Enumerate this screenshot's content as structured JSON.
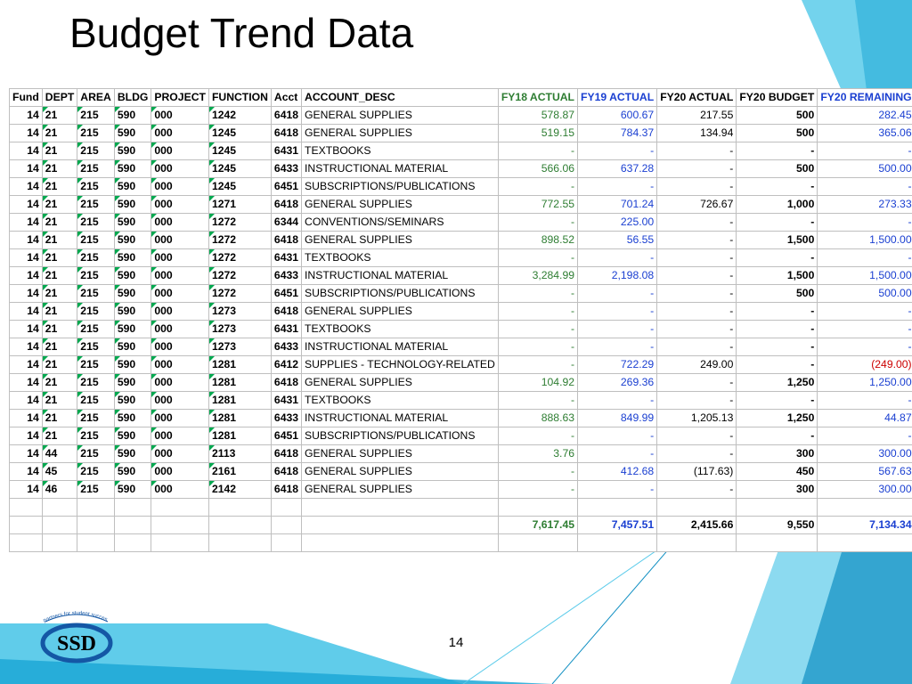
{
  "title": "Budget Trend Data",
  "page_number": "14",
  "logo": {
    "text": "SSD",
    "ribbon": "partners for student success"
  },
  "colors": {
    "fy18": "#2e7d32",
    "fy19": "#1a3fd1",
    "fy20a": "#000000",
    "fy20b": "#000000",
    "fy20r": "#1a3fd1",
    "negative": "#cc0000",
    "grid": "#bfbfbf",
    "flag": "#00a84f",
    "totals_fy18": "#2e7d32",
    "totals_fy19": "#1a3fd1",
    "totals_fy20r": "#1a3fd1"
  },
  "table": {
    "columns": [
      {
        "key": "fund",
        "label": "Fund"
      },
      {
        "key": "dept",
        "label": "DEPT"
      },
      {
        "key": "area",
        "label": "AREA"
      },
      {
        "key": "bldg",
        "label": "BLDG"
      },
      {
        "key": "project",
        "label": "PROJECT"
      },
      {
        "key": "function",
        "label": "FUNCTION"
      },
      {
        "key": "acct",
        "label": "Acct"
      },
      {
        "key": "desc",
        "label": "ACCOUNT_DESC"
      },
      {
        "key": "fy18",
        "label": "FY18 ACTUAL"
      },
      {
        "key": "fy19",
        "label": "FY19 ACTUAL"
      },
      {
        "key": "fy20a",
        "label": "FY20 ACTUAL"
      },
      {
        "key": "fy20b",
        "label": "FY20 BUDGET"
      },
      {
        "key": "fy20r",
        "label": "FY20 REMAINING"
      }
    ],
    "rows": [
      {
        "fund": "14",
        "dept": "21",
        "area": "215",
        "bldg": "590",
        "project": "000",
        "function": "1242",
        "acct": "6418",
        "desc": "GENERAL SUPPLIES",
        "fy18": "578.87",
        "fy19": "600.67",
        "fy20a": "217.55",
        "fy20b": "500",
        "fy20r": "282.45"
      },
      {
        "fund": "14",
        "dept": "21",
        "area": "215",
        "bldg": "590",
        "project": "000",
        "function": "1245",
        "acct": "6418",
        "desc": "GENERAL SUPPLIES",
        "fy18": "519.15",
        "fy19": "784.37",
        "fy20a": "134.94",
        "fy20b": "500",
        "fy20r": "365.06"
      },
      {
        "fund": "14",
        "dept": "21",
        "area": "215",
        "bldg": "590",
        "project": "000",
        "function": "1245",
        "acct": "6431",
        "desc": "TEXTBOOKS",
        "fy18": "-",
        "fy19": "-",
        "fy20a": "-",
        "fy20b": "-",
        "fy20r": "-"
      },
      {
        "fund": "14",
        "dept": "21",
        "area": "215",
        "bldg": "590",
        "project": "000",
        "function": "1245",
        "acct": "6433",
        "desc": "INSTRUCTIONAL MATERIAL",
        "fy18": "566.06",
        "fy19": "637.28",
        "fy20a": "-",
        "fy20b": "500",
        "fy20r": "500.00"
      },
      {
        "fund": "14",
        "dept": "21",
        "area": "215",
        "bldg": "590",
        "project": "000",
        "function": "1245",
        "acct": "6451",
        "desc": "SUBSCRIPTIONS/PUBLICATIONS",
        "fy18": "-",
        "fy19": "-",
        "fy20a": "-",
        "fy20b": "-",
        "fy20r": "-"
      },
      {
        "fund": "14",
        "dept": "21",
        "area": "215",
        "bldg": "590",
        "project": "000",
        "function": "1271",
        "acct": "6418",
        "desc": "GENERAL SUPPLIES",
        "fy18": "772.55",
        "fy19": "701.24",
        "fy20a": "726.67",
        "fy20b": "1,000",
        "fy20r": "273.33"
      },
      {
        "fund": "14",
        "dept": "21",
        "area": "215",
        "bldg": "590",
        "project": "000",
        "function": "1272",
        "acct": "6344",
        "desc": "CONVENTIONS/SEMINARS",
        "fy18": "-",
        "fy19": "225.00",
        "fy20a": "-",
        "fy20b": "-",
        "fy20r": "-"
      },
      {
        "fund": "14",
        "dept": "21",
        "area": "215",
        "bldg": "590",
        "project": "000",
        "function": "1272",
        "acct": "6418",
        "desc": "GENERAL SUPPLIES",
        "fy18": "898.52",
        "fy19": "56.55",
        "fy20a": "-",
        "fy20b": "1,500",
        "fy20r": "1,500.00"
      },
      {
        "fund": "14",
        "dept": "21",
        "area": "215",
        "bldg": "590",
        "project": "000",
        "function": "1272",
        "acct": "6431",
        "desc": "TEXTBOOKS",
        "fy18": "-",
        "fy19": "-",
        "fy20a": "-",
        "fy20b": "-",
        "fy20r": "-"
      },
      {
        "fund": "14",
        "dept": "21",
        "area": "215",
        "bldg": "590",
        "project": "000",
        "function": "1272",
        "acct": "6433",
        "desc": "INSTRUCTIONAL MATERIAL",
        "fy18": "3,284.99",
        "fy19": "2,198.08",
        "fy20a": "-",
        "fy20b": "1,500",
        "fy20r": "1,500.00"
      },
      {
        "fund": "14",
        "dept": "21",
        "area": "215",
        "bldg": "590",
        "project": "000",
        "function": "1272",
        "acct": "6451",
        "desc": "SUBSCRIPTIONS/PUBLICATIONS",
        "fy18": "-",
        "fy19": "-",
        "fy20a": "-",
        "fy20b": "500",
        "fy20r": "500.00"
      },
      {
        "fund": "14",
        "dept": "21",
        "area": "215",
        "bldg": "590",
        "project": "000",
        "function": "1273",
        "acct": "6418",
        "desc": "GENERAL SUPPLIES",
        "fy18": "-",
        "fy19": "-",
        "fy20a": "-",
        "fy20b": "-",
        "fy20r": "-"
      },
      {
        "fund": "14",
        "dept": "21",
        "area": "215",
        "bldg": "590",
        "project": "000",
        "function": "1273",
        "acct": "6431",
        "desc": "TEXTBOOKS",
        "fy18": "-",
        "fy19": "-",
        "fy20a": "-",
        "fy20b": "-",
        "fy20r": "-"
      },
      {
        "fund": "14",
        "dept": "21",
        "area": "215",
        "bldg": "590",
        "project": "000",
        "function": "1273",
        "acct": "6433",
        "desc": "INSTRUCTIONAL MATERIAL",
        "fy18": "-",
        "fy19": "-",
        "fy20a": "-",
        "fy20b": "-",
        "fy20r": "-"
      },
      {
        "fund": "14",
        "dept": "21",
        "area": "215",
        "bldg": "590",
        "project": "000",
        "function": "1281",
        "acct": "6412",
        "desc": "SUPPLIES - TECHNOLOGY-RELATED",
        "fy18": "-",
        "fy19": "722.29",
        "fy20a": "249.00",
        "fy20b": "-",
        "fy20r": "(249.00)",
        "neg": true
      },
      {
        "fund": "14",
        "dept": "21",
        "area": "215",
        "bldg": "590",
        "project": "000",
        "function": "1281",
        "acct": "6418",
        "desc": "GENERAL SUPPLIES",
        "fy18": "104.92",
        "fy19": "269.36",
        "fy20a": "-",
        "fy20b": "1,250",
        "fy20r": "1,250.00"
      },
      {
        "fund": "14",
        "dept": "21",
        "area": "215",
        "bldg": "590",
        "project": "000",
        "function": "1281",
        "acct": "6431",
        "desc": "TEXTBOOKS",
        "fy18": "-",
        "fy19": "-",
        "fy20a": "-",
        "fy20b": "-",
        "fy20r": "-"
      },
      {
        "fund": "14",
        "dept": "21",
        "area": "215",
        "bldg": "590",
        "project": "000",
        "function": "1281",
        "acct": "6433",
        "desc": "INSTRUCTIONAL MATERIAL",
        "fy18": "888.63",
        "fy19": "849.99",
        "fy20a": "1,205.13",
        "fy20b": "1,250",
        "fy20r": "44.87"
      },
      {
        "fund": "14",
        "dept": "21",
        "area": "215",
        "bldg": "590",
        "project": "000",
        "function": "1281",
        "acct": "6451",
        "desc": "SUBSCRIPTIONS/PUBLICATIONS",
        "fy18": "-",
        "fy19": "-",
        "fy20a": "-",
        "fy20b": "-",
        "fy20r": "-"
      },
      {
        "fund": "14",
        "dept": "44",
        "area": "215",
        "bldg": "590",
        "project": "000",
        "function": "2113",
        "acct": "6418",
        "desc": "GENERAL SUPPLIES",
        "fy18": "3.76",
        "fy19": "-",
        "fy20a": "-",
        "fy20b": "300",
        "fy20r": "300.00"
      },
      {
        "fund": "14",
        "dept": "45",
        "area": "215",
        "bldg": "590",
        "project": "000",
        "function": "2161",
        "acct": "6418",
        "desc": "GENERAL SUPPLIES",
        "fy18": "-",
        "fy19": "412.68",
        "fy20a": "(117.63)",
        "fy20b": "450",
        "fy20r": "567.63"
      },
      {
        "fund": "14",
        "dept": "46",
        "area": "215",
        "bldg": "590",
        "project": "000",
        "function": "2142",
        "acct": "6418",
        "desc": "GENERAL SUPPLIES",
        "fy18": "-",
        "fy19": "-",
        "fy20a": "-",
        "fy20b": "300",
        "fy20r": "300.00"
      }
    ],
    "totals": {
      "fy18": "7,617.45",
      "fy19": "7,457.51",
      "fy20a": "2,415.66",
      "fy20b": "9,550",
      "fy20r": "7,134.34"
    }
  }
}
